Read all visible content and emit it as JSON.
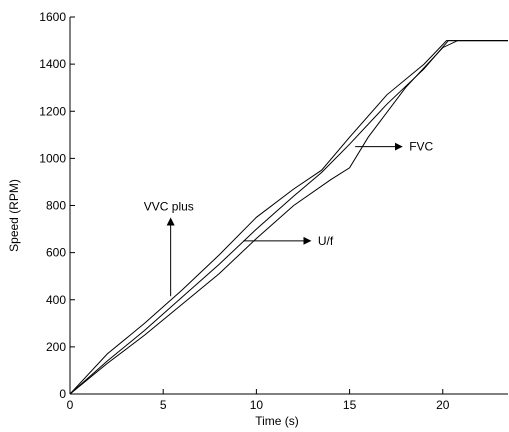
{
  "chart_data": {
    "type": "line",
    "xlabel": "Time (s)",
    "ylabel": "Speed (RPM)",
    "xlim": [
      0,
      23.5
    ],
    "ylim": [
      0,
      1600
    ],
    "x_ticks": [
      0,
      5,
      10,
      15,
      20
    ],
    "y_ticks": [
      0,
      200,
      400,
      600,
      800,
      1000,
      1200,
      1400,
      1600
    ],
    "grid": false,
    "series": [
      {
        "name": "VVC plus",
        "x": [
          0,
          2,
          4,
          6,
          8,
          10,
          12,
          13.5,
          15,
          17,
          19,
          20.2,
          23.5
        ],
        "y": [
          0,
          170,
          300,
          440,
          590,
          750,
          870,
          950,
          1090,
          1270,
          1400,
          1500,
          1500
        ]
      },
      {
        "name": "U/f",
        "x": [
          0,
          2,
          4,
          6,
          8,
          10,
          12,
          13.5,
          15,
          17,
          19,
          20.3,
          23.5
        ],
        "y": [
          0,
          140,
          270,
          410,
          550,
          700,
          840,
          940,
          1060,
          1230,
          1380,
          1500,
          1500
        ]
      },
      {
        "name": "FVC",
        "x": [
          0,
          2,
          4,
          6,
          8,
          10,
          12,
          14,
          15,
          16,
          18,
          20,
          20.8,
          23.5
        ],
        "y": [
          0,
          130,
          250,
          380,
          510,
          660,
          800,
          910,
          960,
          1090,
          1300,
          1470,
          1500,
          1500
        ]
      }
    ],
    "annotations": [
      {
        "text": "VVC plus",
        "series": "VVC plus",
        "arrow_from": [
          5.4,
          415
        ],
        "arrow_to": [
          5.4,
          745
        ],
        "text_at": [
          5.3,
          795
        ]
      },
      {
        "text": "U/f",
        "series": "U/f",
        "arrow_from": [
          9.3,
          650
        ],
        "arrow_to": [
          12.9,
          650
        ],
        "text_at": [
          13.3,
          650
        ]
      },
      {
        "text": "FVC",
        "series": "FVC",
        "arrow_from": [
          15.3,
          1050
        ],
        "arrow_to": [
          17.8,
          1050
        ],
        "text_at": [
          18.2,
          1050
        ]
      }
    ]
  }
}
